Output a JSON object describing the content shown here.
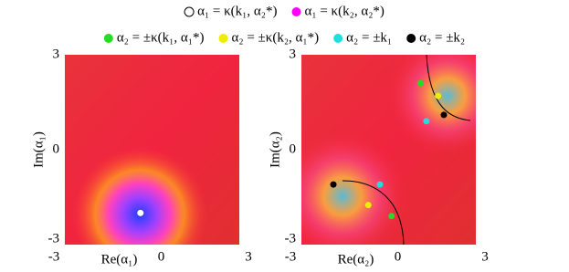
{
  "chart_data": [
    {
      "type": "scatter",
      "xlabel": "Re(α₁)",
      "ylabel": "Im(α₁)",
      "xlim": [
        -3,
        3
      ],
      "ylim": [
        -3,
        3
      ],
      "xticks": [
        -3,
        0,
        3
      ],
      "yticks": [
        -3,
        0,
        3
      ],
      "series": [
        {
          "name": "α₁ = κ(k₂, α₂*)",
          "color": "#ff00ff",
          "x": [
            -0.4
          ],
          "values": [
            -2.0
          ]
        },
        {
          "name": "α₁ = κ(k₁, α₂*)",
          "color": "#ffffff",
          "x": [
            -0.4
          ],
          "values": [
            -2.0
          ]
        }
      ]
    },
    {
      "type": "scatter",
      "xlabel": "Re(α₂)",
      "ylabel": "Im(α₂)",
      "xlim": [
        -3,
        3
      ],
      "ylim": [
        -3,
        3
      ],
      "xticks": [
        -3,
        0,
        3
      ],
      "yticks": [
        -3,
        0,
        3
      ],
      "series": [
        {
          "name": "α₂ = ±κ(k₁, α₁*)",
          "color": "#22dd22",
          "x": [
            1.1,
            0.1
          ],
          "values": [
            2.1,
            -2.1
          ]
        },
        {
          "name": "α₂ = ±κ(k₂, α₁*)",
          "color": "#eeee00",
          "x": [
            1.7,
            -0.7
          ],
          "values": [
            1.7,
            -1.75
          ]
        },
        {
          "name": "α₂ = ±k₁",
          "color": "#22dddd",
          "x": [
            1.3,
            -0.3
          ],
          "values": [
            0.9,
            -1.1
          ]
        },
        {
          "name": "α₂ = ±k₂",
          "color": "#000000",
          "x": [
            1.9,
            -1.9
          ],
          "values": [
            1.1,
            -1.1
          ]
        }
      ]
    }
  ]
}
